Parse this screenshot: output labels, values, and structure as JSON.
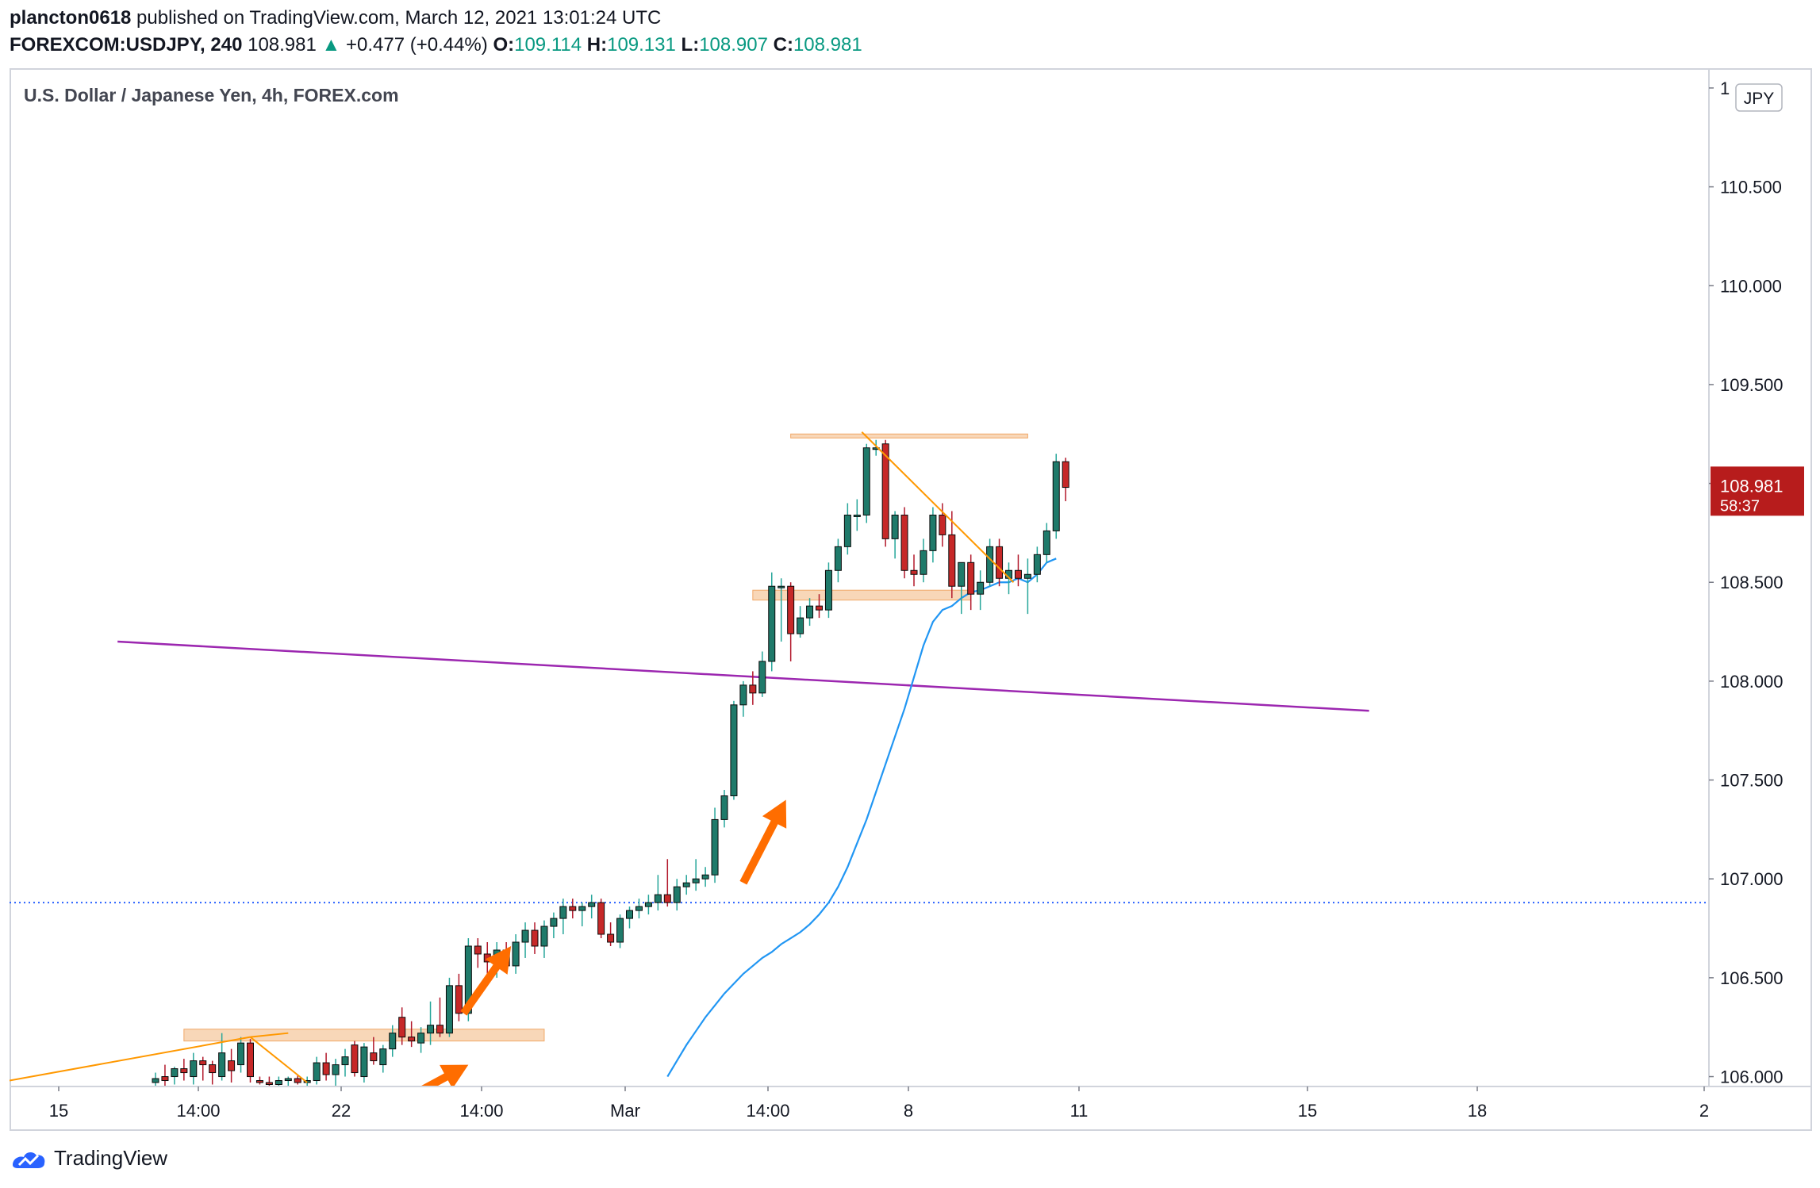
{
  "header": {
    "author": "plancton0618",
    "published_text": " published on TradingView.com, March 12, 2021 13:01:24 UTC",
    "symbol": "FOREXCOM:USDJPY, 240",
    "last": "108.981",
    "change": "+0.477 (+0.44%)",
    "o_label": "O:",
    "o_value": "109.114",
    "h_label": "H:",
    "h_value": "109.131",
    "l_label": "L:",
    "l_value": "108.907",
    "c_label": "C:",
    "c_value": "108.981"
  },
  "chart_data": {
    "type": "candlestick",
    "title": "U.S. Dollar / Japanese Yen, 4h, FOREX.com",
    "currency_badge": "JPY",
    "y_axis": {
      "ticks": [
        "106.000",
        "106.500",
        "107.000",
        "107.500",
        "108.000",
        "108.500",
        "109.000",
        "109.500",
        "110.000",
        "110.500",
        "1"
      ],
      "tick_values": [
        106.0,
        106.5,
        107.0,
        107.5,
        108.0,
        108.5,
        109.0,
        109.5,
        110.0,
        110.5,
        111.0
      ],
      "ylim": [
        105.95,
        111.1
      ]
    },
    "x_axis": {
      "ticks": [
        "15",
        "14:00",
        "22",
        "14:00",
        "Mar",
        "14:00",
        "8",
        "11",
        "15",
        "18",
        "2"
      ]
    },
    "price_label": {
      "value": 108.981,
      "text": "108.981",
      "countdown": "58:37"
    },
    "candles": [
      {
        "o": 105.97,
        "h": 106.02,
        "l": 105.93,
        "c": 105.99
      },
      {
        "o": 106.0,
        "h": 106.06,
        "l": 105.95,
        "c": 105.98
      },
      {
        "o": 106.0,
        "h": 106.05,
        "l": 105.96,
        "c": 106.04
      },
      {
        "o": 106.04,
        "h": 106.09,
        "l": 105.98,
        "c": 106.02
      },
      {
        "o": 106.0,
        "h": 106.12,
        "l": 105.96,
        "c": 106.08
      },
      {
        "o": 106.08,
        "h": 106.1,
        "l": 105.98,
        "c": 106.06
      },
      {
        "o": 106.06,
        "h": 106.08,
        "l": 105.96,
        "c": 106.02
      },
      {
        "o": 106.0,
        "h": 106.22,
        "l": 105.98,
        "c": 106.12
      },
      {
        "o": 106.08,
        "h": 106.14,
        "l": 105.97,
        "c": 106.03
      },
      {
        "o": 106.06,
        "h": 106.2,
        "l": 106.02,
        "c": 106.17
      },
      {
        "o": 106.17,
        "h": 106.19,
        "l": 105.97,
        "c": 106.0
      },
      {
        "o": 105.98,
        "h": 106.0,
        "l": 105.96,
        "c": 105.97
      },
      {
        "o": 105.97,
        "h": 106.0,
        "l": 105.95,
        "c": 105.96
      },
      {
        "o": 105.96,
        "h": 106.0,
        "l": 105.94,
        "c": 105.98
      },
      {
        "o": 105.98,
        "h": 106.0,
        "l": 105.95,
        "c": 105.99
      },
      {
        "o": 105.99,
        "h": 106.01,
        "l": 105.96,
        "c": 105.97
      },
      {
        "o": 105.97,
        "h": 106.0,
        "l": 105.95,
        "c": 105.98
      },
      {
        "o": 105.98,
        "h": 106.1,
        "l": 105.96,
        "c": 106.07
      },
      {
        "o": 106.07,
        "h": 106.12,
        "l": 105.98,
        "c": 106.01
      },
      {
        "o": 106.01,
        "h": 106.09,
        "l": 105.95,
        "c": 106.06
      },
      {
        "o": 106.06,
        "h": 106.14,
        "l": 106.0,
        "c": 106.1
      },
      {
        "o": 106.16,
        "h": 106.18,
        "l": 106.0,
        "c": 106.02
      },
      {
        "o": 106.0,
        "h": 106.17,
        "l": 105.97,
        "c": 106.15
      },
      {
        "o": 106.12,
        "h": 106.2,
        "l": 106.06,
        "c": 106.08
      },
      {
        "o": 106.06,
        "h": 106.16,
        "l": 106.02,
        "c": 106.14
      },
      {
        "o": 106.14,
        "h": 106.26,
        "l": 106.1,
        "c": 106.22
      },
      {
        "o": 106.3,
        "h": 106.35,
        "l": 106.16,
        "c": 106.2
      },
      {
        "o": 106.2,
        "h": 106.28,
        "l": 106.15,
        "c": 106.18
      },
      {
        "o": 106.17,
        "h": 106.25,
        "l": 106.12,
        "c": 106.22
      },
      {
        "o": 106.22,
        "h": 106.38,
        "l": 106.16,
        "c": 106.26
      },
      {
        "o": 106.26,
        "h": 106.4,
        "l": 106.2,
        "c": 106.22
      },
      {
        "o": 106.22,
        "h": 106.5,
        "l": 106.2,
        "c": 106.46
      },
      {
        "o": 106.46,
        "h": 106.52,
        "l": 106.28,
        "c": 106.32
      },
      {
        "o": 106.32,
        "h": 106.7,
        "l": 106.28,
        "c": 106.66
      },
      {
        "o": 106.66,
        "h": 106.7,
        "l": 106.55,
        "c": 106.62
      },
      {
        "o": 106.62,
        "h": 106.68,
        "l": 106.52,
        "c": 106.58
      },
      {
        "o": 106.58,
        "h": 106.68,
        "l": 106.5,
        "c": 106.64
      },
      {
        "o": 106.64,
        "h": 106.68,
        "l": 106.53,
        "c": 106.56
      },
      {
        "o": 106.56,
        "h": 106.72,
        "l": 106.52,
        "c": 106.68
      },
      {
        "o": 106.68,
        "h": 106.78,
        "l": 106.6,
        "c": 106.74
      },
      {
        "o": 106.74,
        "h": 106.78,
        "l": 106.62,
        "c": 106.66
      },
      {
        "o": 106.66,
        "h": 106.79,
        "l": 106.6,
        "c": 106.76
      },
      {
        "o": 106.76,
        "h": 106.83,
        "l": 106.7,
        "c": 106.8
      },
      {
        "o": 106.8,
        "h": 106.9,
        "l": 106.72,
        "c": 106.86
      },
      {
        "o": 106.86,
        "h": 106.9,
        "l": 106.8,
        "c": 106.84
      },
      {
        "o": 106.84,
        "h": 106.88,
        "l": 106.76,
        "c": 106.86
      },
      {
        "o": 106.86,
        "h": 106.92,
        "l": 106.8,
        "c": 106.88
      },
      {
        "o": 106.88,
        "h": 106.9,
        "l": 106.7,
        "c": 106.72
      },
      {
        "o": 106.72,
        "h": 106.78,
        "l": 106.66,
        "c": 106.68
      },
      {
        "o": 106.68,
        "h": 106.82,
        "l": 106.65,
        "c": 106.8
      },
      {
        "o": 106.8,
        "h": 106.86,
        "l": 106.75,
        "c": 106.84
      },
      {
        "o": 106.84,
        "h": 106.9,
        "l": 106.8,
        "c": 106.86
      },
      {
        "o": 106.86,
        "h": 106.92,
        "l": 106.82,
        "c": 106.88
      },
      {
        "o": 106.88,
        "h": 107.02,
        "l": 106.84,
        "c": 106.92
      },
      {
        "o": 106.92,
        "h": 107.1,
        "l": 106.86,
        "c": 106.88
      },
      {
        "o": 106.88,
        "h": 107.0,
        "l": 106.84,
        "c": 106.96
      },
      {
        "o": 106.96,
        "h": 107.02,
        "l": 106.92,
        "c": 106.98
      },
      {
        "o": 106.98,
        "h": 107.1,
        "l": 106.94,
        "c": 107.0
      },
      {
        "o": 107.0,
        "h": 107.06,
        "l": 106.96,
        "c": 107.02
      },
      {
        "o": 107.02,
        "h": 107.36,
        "l": 106.98,
        "c": 107.3
      },
      {
        "o": 107.3,
        "h": 107.45,
        "l": 107.26,
        "c": 107.42
      },
      {
        "o": 107.42,
        "h": 107.9,
        "l": 107.4,
        "c": 107.88
      },
      {
        "o": 107.88,
        "h": 108.0,
        "l": 107.82,
        "c": 107.98
      },
      {
        "o": 107.98,
        "h": 108.05,
        "l": 107.88,
        "c": 107.94
      },
      {
        "o": 107.94,
        "h": 108.15,
        "l": 107.92,
        "c": 108.1
      },
      {
        "o": 108.1,
        "h": 108.55,
        "l": 108.05,
        "c": 108.48
      },
      {
        "o": 108.48,
        "h": 108.52,
        "l": 108.2,
        "c": 108.48
      },
      {
        "o": 108.48,
        "h": 108.5,
        "l": 108.1,
        "c": 108.24
      },
      {
        "o": 108.24,
        "h": 108.38,
        "l": 108.22,
        "c": 108.32
      },
      {
        "o": 108.32,
        "h": 108.42,
        "l": 108.28,
        "c": 108.38
      },
      {
        "o": 108.38,
        "h": 108.44,
        "l": 108.32,
        "c": 108.36
      },
      {
        "o": 108.36,
        "h": 108.6,
        "l": 108.32,
        "c": 108.56
      },
      {
        "o": 108.56,
        "h": 108.72,
        "l": 108.5,
        "c": 108.68
      },
      {
        "o": 108.68,
        "h": 108.9,
        "l": 108.64,
        "c": 108.84
      },
      {
        "o": 108.84,
        "h": 108.92,
        "l": 108.76,
        "c": 108.84
      },
      {
        "o": 108.84,
        "h": 109.2,
        "l": 108.8,
        "c": 109.18
      },
      {
        "o": 109.18,
        "h": 109.22,
        "l": 109.14,
        "c": 109.18
      },
      {
        "o": 109.2,
        "h": 109.22,
        "l": 108.68,
        "c": 108.72
      },
      {
        "o": 108.72,
        "h": 108.86,
        "l": 108.62,
        "c": 108.84
      },
      {
        "o": 108.84,
        "h": 108.88,
        "l": 108.52,
        "c": 108.56
      },
      {
        "o": 108.56,
        "h": 108.64,
        "l": 108.48,
        "c": 108.54
      },
      {
        "o": 108.54,
        "h": 108.72,
        "l": 108.5,
        "c": 108.66
      },
      {
        "o": 108.66,
        "h": 108.88,
        "l": 108.6,
        "c": 108.84
      },
      {
        "o": 108.84,
        "h": 108.9,
        "l": 108.68,
        "c": 108.74
      },
      {
        "o": 108.74,
        "h": 108.86,
        "l": 108.42,
        "c": 108.48
      },
      {
        "o": 108.48,
        "h": 108.6,
        "l": 108.34,
        "c": 108.6
      },
      {
        "o": 108.6,
        "h": 108.64,
        "l": 108.36,
        "c": 108.44
      },
      {
        "o": 108.44,
        "h": 108.56,
        "l": 108.36,
        "c": 108.5
      },
      {
        "o": 108.5,
        "h": 108.72,
        "l": 108.48,
        "c": 108.68
      },
      {
        "o": 108.68,
        "h": 108.72,
        "l": 108.48,
        "c": 108.52
      },
      {
        "o": 108.52,
        "h": 108.6,
        "l": 108.44,
        "c": 108.56
      },
      {
        "o": 108.56,
        "h": 108.64,
        "l": 108.48,
        "c": 108.52
      },
      {
        "o": 108.52,
        "h": 108.62,
        "l": 108.34,
        "c": 108.54
      },
      {
        "o": 108.54,
        "h": 108.68,
        "l": 108.5,
        "c": 108.64
      },
      {
        "o": 108.64,
        "h": 108.8,
        "l": 108.6,
        "c": 108.76
      },
      {
        "o": 108.76,
        "h": 109.15,
        "l": 108.72,
        "c": 109.11
      },
      {
        "o": 109.11,
        "h": 109.13,
        "l": 108.91,
        "c": 108.98
      }
    ],
    "ema": [
      106.0,
      106.08,
      106.16,
      106.23,
      106.3,
      106.36,
      106.42,
      106.47,
      106.52,
      106.56,
      106.6,
      106.63,
      106.67,
      106.7,
      106.73,
      106.77,
      106.82,
      106.88,
      106.96,
      107.06,
      107.18,
      107.3,
      107.44,
      107.58,
      107.72,
      107.86,
      108.02,
      108.18,
      108.3,
      108.36,
      108.38,
      108.42,
      108.45,
      108.46,
      108.48,
      108.5,
      108.5,
      108.52,
      108.5,
      108.54,
      108.6,
      108.62
    ],
    "zones": [
      {
        "x0": 3,
        "x1": 41,
        "y0": 106.18,
        "y1": 106.24
      },
      {
        "x0": 63,
        "x1": 86,
        "y0": 108.41,
        "y1": 108.46
      },
      {
        "x0": 67,
        "x1": 92,
        "y0": 109.23,
        "y1": 109.25
      }
    ],
    "h_lines": [
      {
        "value": 106.88,
        "style": "dotted",
        "color": "#2962ff"
      }
    ],
    "purple_line": {
      "from": [
        -4,
        108.2
      ],
      "to": [
        128,
        107.85
      ]
    }
  },
  "colors": {
    "up": "#26a69a",
    "up_fill": "#1f7a6a",
    "down": "#b2182b",
    "down_fill": "#c62828",
    "ema": "#2196f3",
    "zone": "#f5c9a0",
    "trend": "#ff9800",
    "arrow": "#ff6d00",
    "purple": "#9c27b0"
  },
  "footer": {
    "brand": "TradingView"
  }
}
